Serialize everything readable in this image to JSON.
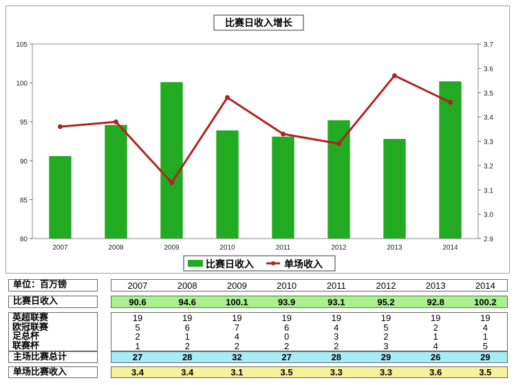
{
  "chart_data": {
    "type": "bar",
    "title": "比赛日收入增长",
    "categories": [
      "2007",
      "2008",
      "2009",
      "2010",
      "2011",
      "2012",
      "2013",
      "2014"
    ],
    "y_left": {
      "range": [
        80,
        105
      ],
      "ticks": [
        "80",
        "85",
        "90",
        "95",
        "100",
        "105"
      ]
    },
    "y_right": {
      "range": [
        2.9,
        3.7
      ],
      "ticks": [
        "2.9",
        "3.0",
        "3.1",
        "3.2",
        "3.3",
        "3.4",
        "3.5",
        "3.6",
        "3.7"
      ]
    },
    "series": [
      {
        "name": "比赛日收入",
        "type": "bar",
        "axis": "left",
        "color": "#22aa22",
        "values": [
          90.6,
          94.6,
          100.1,
          93.9,
          93.1,
          95.2,
          92.8,
          100.2
        ]
      },
      {
        "name": "单场收入",
        "type": "line",
        "axis": "right",
        "color": "#b22222",
        "values": [
          3.36,
          3.38,
          3.13,
          3.48,
          3.33,
          3.29,
          3.57,
          3.46
        ]
      }
    ],
    "legend": "bottom"
  },
  "table": {
    "unit_label": "单位：百万镑",
    "years": [
      "2007",
      "2008",
      "2009",
      "2010",
      "2011",
      "2012",
      "2013",
      "2014"
    ],
    "revenue_label": "比赛日收入",
    "revenue": [
      "90.6",
      "94.6",
      "100.1",
      "93.9",
      "93.1",
      "95.2",
      "92.8",
      "100.2"
    ],
    "competitions": [
      {
        "label": "英超联赛",
        "values": [
          "19",
          "19",
          "19",
          "19",
          "19",
          "19",
          "19",
          "19"
        ]
      },
      {
        "label": "欧冠联赛",
        "values": [
          "5",
          "6",
          "7",
          "6",
          "4",
          "5",
          "2",
          "4"
        ]
      },
      {
        "label": "足总杯",
        "values": [
          "2",
          "1",
          "4",
          "0",
          "3",
          "2",
          "1",
          "1"
        ]
      },
      {
        "label": "联赛杯",
        "values": [
          "1",
          "2",
          "2",
          "2",
          "2",
          "3",
          "4",
          "5"
        ]
      }
    ],
    "home_total_label": "主场比赛总计",
    "home_total": [
      "27",
      "28",
      "32",
      "27",
      "28",
      "29",
      "26",
      "29"
    ],
    "per_match_label": "单场比赛收入",
    "per_match": [
      "3.4",
      "3.4",
      "3.1",
      "3.5",
      "3.3",
      "3.3",
      "3.6",
      "3.5"
    ]
  },
  "colors": {
    "revenue_row_bg": "#a9f08e",
    "home_total_bg": "#a6ecf6",
    "per_match_bg": "#f4f29a"
  }
}
